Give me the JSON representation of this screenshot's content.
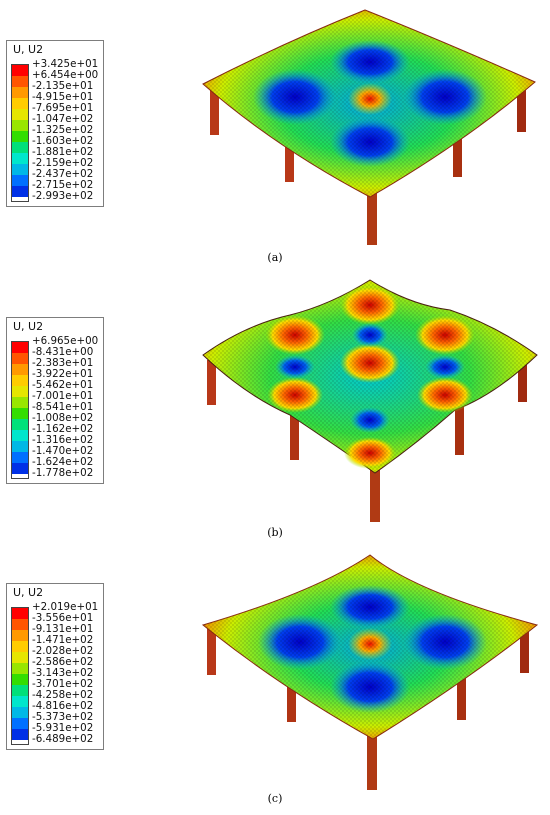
{
  "legend_colors": [
    "#ff0000",
    "#ff5500",
    "#ff9900",
    "#ffcc00",
    "#e6e600",
    "#99e600",
    "#33dd00",
    "#00e07a",
    "#00e6cc",
    "#00b8e6",
    "#0070ff",
    "#0030e6",
    "#0000cc"
  ],
  "panels": [
    {
      "legend_title": "U, U2",
      "legend_values": [
        "+3.425e+01",
        "+6.454e+00",
        "-2.135e+01",
        "-4.915e+01",
        "-7.695e+01",
        "-1.047e+02",
        "-1.325e+02",
        "-1.603e+02",
        "-1.881e+02",
        "-2.159e+02",
        "-2.437e+02",
        "-2.715e+02",
        "-2.993e+02"
      ],
      "caption": "(a)"
    },
    {
      "legend_title": "U, U2",
      "legend_values": [
        "+6.965e+00",
        "-8.431e+00",
        "-2.383e+01",
        "-3.922e+01",
        "-5.462e+01",
        "-7.001e+01",
        "-8.541e+01",
        "-1.008e+02",
        "-1.162e+02",
        "-1.316e+02",
        "-1.470e+02",
        "-1.624e+02",
        "-1.778e+02"
      ],
      "caption": "(b)"
    },
    {
      "legend_title": "U, U2",
      "legend_values": [
        "+2.019e+01",
        "-3.556e+01",
        "-9.131e+01",
        "-1.471e+02",
        "-2.028e+02",
        "-2.586e+02",
        "-3.143e+02",
        "-3.701e+02",
        "-4.258e+02",
        "-4.816e+02",
        "-5.373e+02",
        "-5.931e+02",
        "-6.489e+02"
      ],
      "caption": "(c)"
    }
  ]
}
